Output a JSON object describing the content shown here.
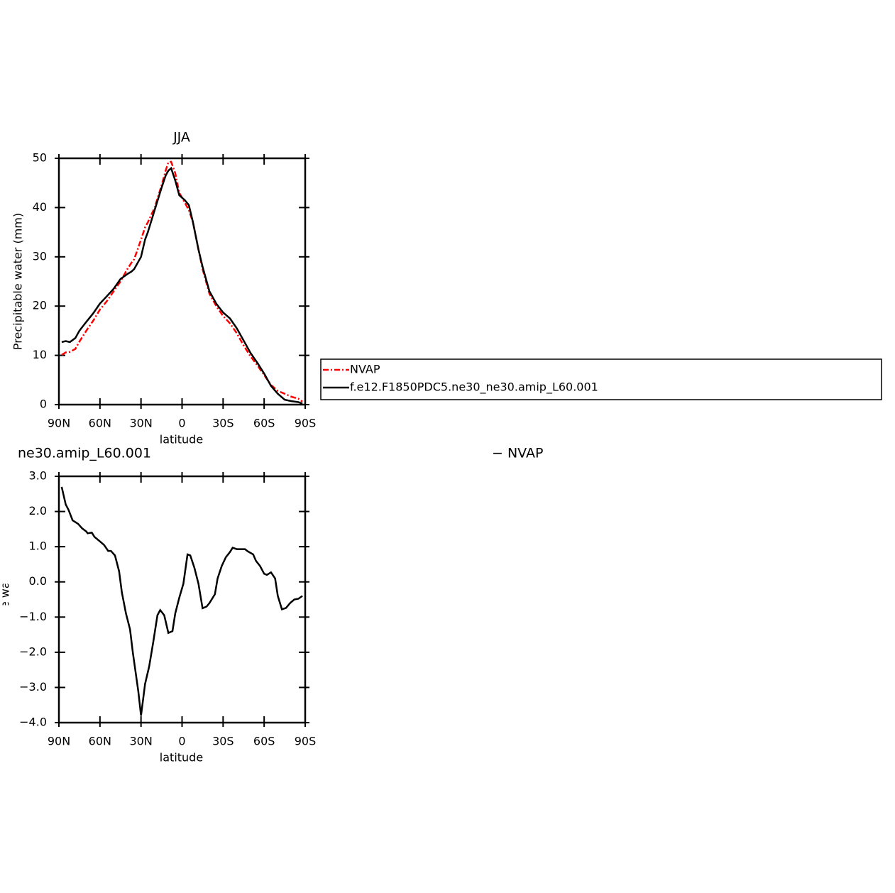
{
  "chart_data": [
    {
      "type": "line",
      "title": "JJA",
      "xlabel": "latitude",
      "ylabel": "Precipitable water  (mm)",
      "legend": true,
      "x": [
        88,
        85,
        82,
        78,
        75,
        70,
        65,
        60,
        55,
        50,
        45,
        40,
        37,
        35,
        30,
        27,
        25,
        20,
        15,
        12,
        10,
        8,
        5,
        2,
        -2,
        -5,
        -8,
        -12,
        -15,
        -20,
        -25,
        -30,
        -35,
        -40,
        -45,
        -50,
        -55,
        -60,
        -65,
        -70,
        -75,
        -80,
        -85,
        -88
      ],
      "series": [
        {
          "name": "NVAP",
          "color": "#ff0000",
          "linestyle": "dashed",
          "values": [
            10.1,
            10.6,
            10.7,
            11.3,
            12.8,
            15,
            17,
            19.3,
            21,
            23,
            25,
            27.5,
            28.8,
            29.5,
            33.5,
            36,
            37,
            40,
            44.5,
            47.5,
            49.2,
            49.3,
            47,
            43,
            41,
            39.5,
            37,
            31.5,
            27.5,
            22.5,
            20,
            18,
            16.5,
            14.5,
            12,
            9.8,
            8,
            6,
            4,
            2.8,
            2.2,
            1.6,
            1.2,
            0.6
          ]
        },
        {
          "name": "f.e12.F1850PDC5.ne30_ne30.amip_L60.001",
          "color": "#000000",
          "linestyle": "solid",
          "values": [
            12.7,
            12.9,
            12.7,
            13.5,
            15,
            16.8,
            18.5,
            20.5,
            22,
            23.5,
            25.5,
            26.5,
            27,
            27.5,
            30,
            33.5,
            35,
            39.5,
            44,
            46.5,
            47.5,
            48,
            45.5,
            42.5,
            41.5,
            40.5,
            37,
            31.5,
            28,
            23,
            20.5,
            18.7,
            17.5,
            15.5,
            13,
            10.5,
            8.5,
            6.3,
            3.8,
            2.2,
            1,
            0.7,
            0.5,
            0.2
          ]
        }
      ],
      "xlim": [
        90,
        -90
      ],
      "xticks": [
        {
          "value": 90,
          "label": "90N"
        },
        {
          "value": 60,
          "label": "60N"
        },
        {
          "value": 30,
          "label": "30N"
        },
        0,
        {
          "value": -30,
          "label": "30S"
        },
        {
          "value": -60,
          "label": "60S"
        },
        {
          "value": -90,
          "label": "90S"
        }
      ],
      "ylim": [
        0,
        50
      ],
      "yticks": [
        0,
        10,
        20,
        30,
        40,
        50
      ]
    },
    {
      "type": "line",
      "title": "ne30.amip_L60.001",
      "subtitle": "− NVAP",
      "xlabel": "latitude",
      "ylabel": "Precipitable water  (mm)",
      "x": [
        88,
        85,
        83,
        80,
        76,
        73,
        70,
        69,
        66,
        64,
        60,
        57,
        54,
        52,
        49,
        46,
        44,
        41,
        38,
        36,
        32,
        30,
        27,
        24,
        21,
        18,
        16,
        13,
        10,
        7,
        5,
        2,
        -1,
        -4,
        -6,
        -9,
        -12,
        -15,
        -18,
        -20,
        -24,
        -26,
        -29,
        -32,
        -35,
        -37,
        -40,
        -43,
        -46,
        -48,
        -52,
        -54,
        -57,
        -60,
        -62,
        -65,
        -68,
        -70,
        -73,
        -76,
        -79,
        -82,
        -85,
        -88
      ],
      "series": [
        {
          "color": "#000000",
          "linestyle": "solid",
          "values": [
            2.7,
            2.2,
            2.05,
            1.75,
            1.65,
            1.52,
            1.43,
            1.38,
            1.4,
            1.28,
            1.15,
            1.05,
            0.88,
            0.88,
            0.75,
            0.3,
            -0.3,
            -0.9,
            -1.35,
            -2.0,
            -3.1,
            -3.8,
            -2.9,
            -2.4,
            -1.7,
            -0.95,
            -0.8,
            -0.95,
            -1.45,
            -1.4,
            -0.9,
            -0.45,
            -0.05,
            0.78,
            0.75,
            0.4,
            -0.05,
            -0.75,
            -0.7,
            -0.6,
            -0.35,
            0.1,
            0.45,
            0.7,
            0.85,
            0.97,
            0.93,
            0.93,
            0.93,
            0.87,
            0.78,
            0.6,
            0.45,
            0.23,
            0.2,
            0.27,
            0.1,
            -0.4,
            -0.78,
            -0.74,
            -0.6,
            -0.5,
            -0.48,
            -0.4
          ]
        }
      ],
      "xlim": [
        90,
        -90
      ],
      "xticks": [
        {
          "value": 90,
          "label": "90N"
        },
        {
          "value": 60,
          "label": "60N"
        },
        {
          "value": 30,
          "label": "30N"
        },
        0,
        {
          "value": -30,
          "label": "30S"
        },
        {
          "value": -60,
          "label": "60S"
        },
        {
          "value": -90,
          "label": "90S"
        }
      ],
      "ylim": [
        -4,
        3
      ],
      "yticks": [
        {
          "value": 3,
          "label": "3.0"
        },
        {
          "value": 2,
          "label": "2.0"
        },
        {
          "value": 1,
          "label": "1.0"
        },
        {
          "value": 0,
          "label": "0.0"
        },
        {
          "value": -1,
          "label": "−1.0"
        },
        {
          "value": -2,
          "label": "−2.0"
        },
        {
          "value": -3,
          "label": "−3.0"
        },
        {
          "value": -4,
          "label": "−4.0"
        }
      ]
    }
  ]
}
